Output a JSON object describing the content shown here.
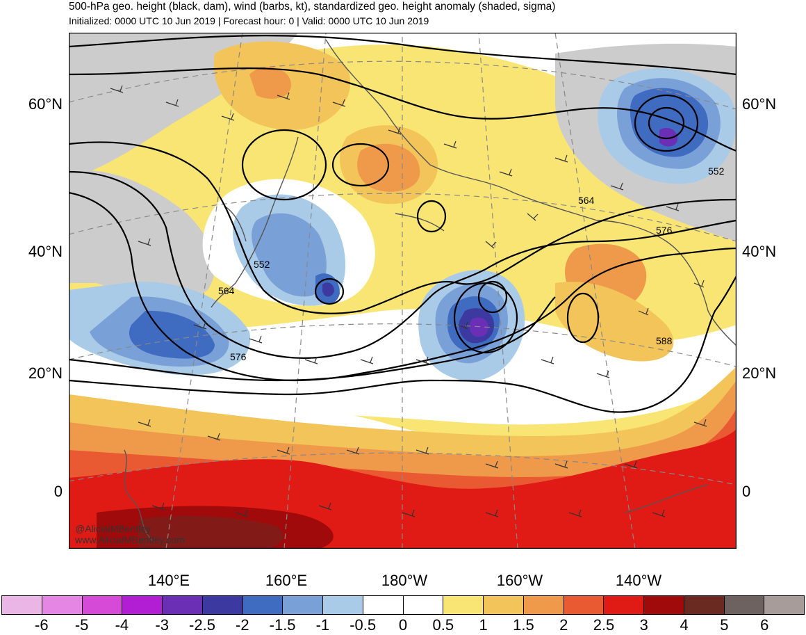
{
  "header": {
    "title": "500-hPa geo. height (black, dam), wind (barbs, kt), standardized geo. height anomaly (shaded, sigma)",
    "subtitle": "Initialized: 0000 UTC 10 Jun 2019 | Forecast hour: 0 | Valid: 0000 UTC 10 Jun 2019"
  },
  "axes": {
    "lat_labels": [
      "60°N",
      "40°N",
      "20°N",
      "0"
    ],
    "lon_labels": [
      "140°E",
      "160°E",
      "180°W",
      "160°W",
      "140°W"
    ]
  },
  "contours": {
    "labels": [
      "552",
      "564",
      "576",
      "588",
      "564",
      "576",
      "552"
    ]
  },
  "credit": {
    "line1": "@AlicialMBentley",
    "line2": "www.AlicialMBentley.com"
  },
  "colorbar": {
    "colors": [
      "#e9b6e6",
      "#e586e4",
      "#d64ad8",
      "#b11ed3",
      "#6a2fb4",
      "#3c3aa0",
      "#3f6bc0",
      "#7aa0d8",
      "#a9cbe8",
      "#ffffff",
      "#ffffff",
      "#f9e574",
      "#f3c45a",
      "#ef9a4a",
      "#ea5a32",
      "#e01a14",
      "#a00a0a",
      "#6a2a22",
      "#6e6260",
      "#a79c9a"
    ],
    "labels": [
      "-6",
      "-5",
      "-4",
      "-3",
      "-2.5",
      "-2",
      "-1.5",
      "-1",
      "-0.5",
      "0",
      "0.5",
      "1",
      "1.5",
      "2",
      "2.5",
      "3",
      "4",
      "5",
      "6"
    ]
  }
}
